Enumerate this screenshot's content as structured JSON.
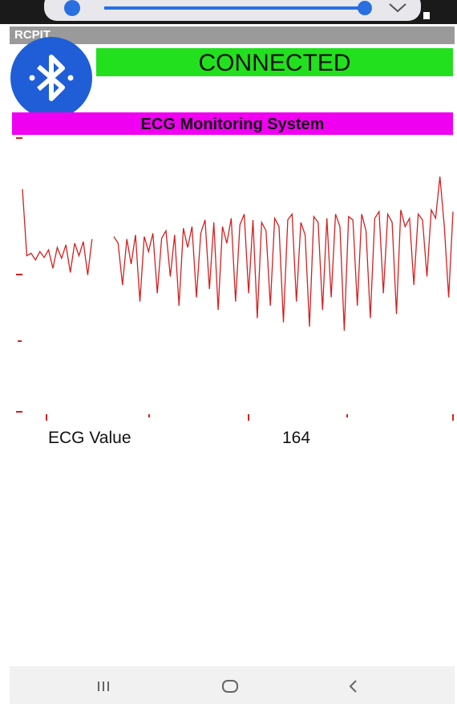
{
  "app_bar": {
    "title": "RCPIT"
  },
  "status": {
    "text": "CONNECTED"
  },
  "header": {
    "title": "ECG Monitoring System"
  },
  "ecg_trace": {
    "values": [
      85,
      5,
      8,
      0,
      10,
      3,
      12,
      -10,
      15,
      2,
      18,
      -15,
      20,
      5,
      22,
      -18,
      25,
      null,
      null,
      null,
      null,
      28,
      20,
      -30,
      25,
      -5,
      30,
      -50,
      28,
      10,
      32,
      -40,
      26,
      35,
      -20,
      30,
      -55,
      38,
      15,
      40,
      -45,
      32,
      48,
      -35,
      45,
      -60,
      40,
      20,
      50,
      -50,
      42,
      55,
      -40,
      48,
      -70,
      45,
      35,
      -55,
      50,
      40,
      -75,
      48,
      55,
      -50,
      45,
      30,
      -80,
      52,
      45,
      -60,
      50,
      -45,
      55,
      40,
      -85,
      52,
      48,
      -55,
      55,
      35,
      -70,
      50,
      58,
      -40,
      55,
      45,
      -65,
      60,
      40,
      50,
      -30,
      55,
      48,
      -20,
      60,
      50,
      100,
      40,
      -45,
      58
    ],
    "color": "#d42020"
  },
  "reading": {
    "label": "ECG Value",
    "value": "164"
  }
}
